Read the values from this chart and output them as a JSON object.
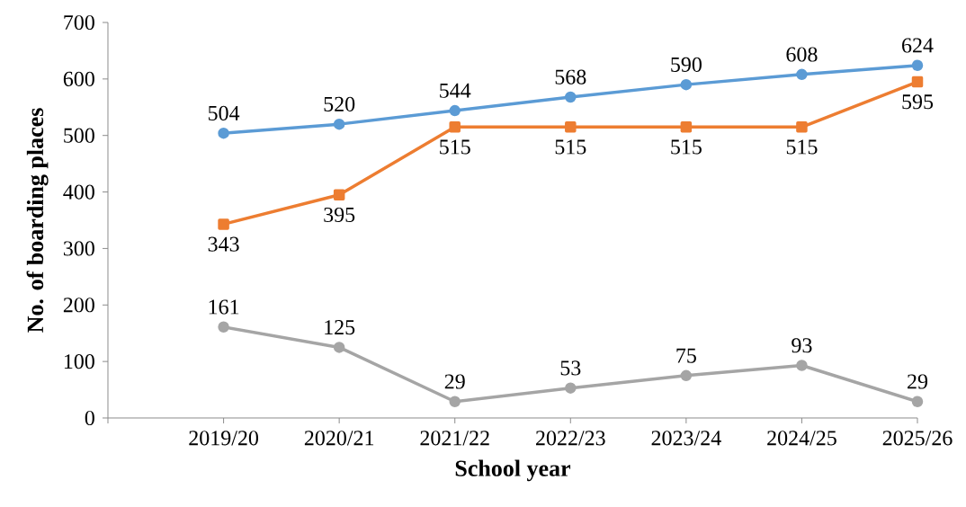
{
  "chart_data": {
    "type": "line",
    "xlabel": "School year",
    "ylabel": "No. of boarding places",
    "categories": [
      null,
      "2019/20",
      "2020/21",
      "2021/22",
      "2022/23",
      "2023/24",
      "2024/25",
      "2025/26"
    ],
    "series": [
      {
        "color": "#5b9bd5",
        "marker": "circle",
        "values": [
          null,
          504,
          520,
          544,
          568,
          590,
          608,
          624
        ]
      },
      {
        "color": "#ed7d31",
        "marker": "square",
        "values": [
          null,
          343,
          395,
          515,
          515,
          515,
          515,
          595
        ]
      },
      {
        "color": "#a5a5a5",
        "marker": "circle",
        "values": [
          null,
          161,
          125,
          29,
          53,
          75,
          93,
          29
        ]
      }
    ],
    "ylim": [
      0,
      700
    ],
    "yticks": [
      0,
      100,
      200,
      300,
      400,
      500,
      600,
      700
    ],
    "data_labels": true,
    "line_style": "solid"
  }
}
